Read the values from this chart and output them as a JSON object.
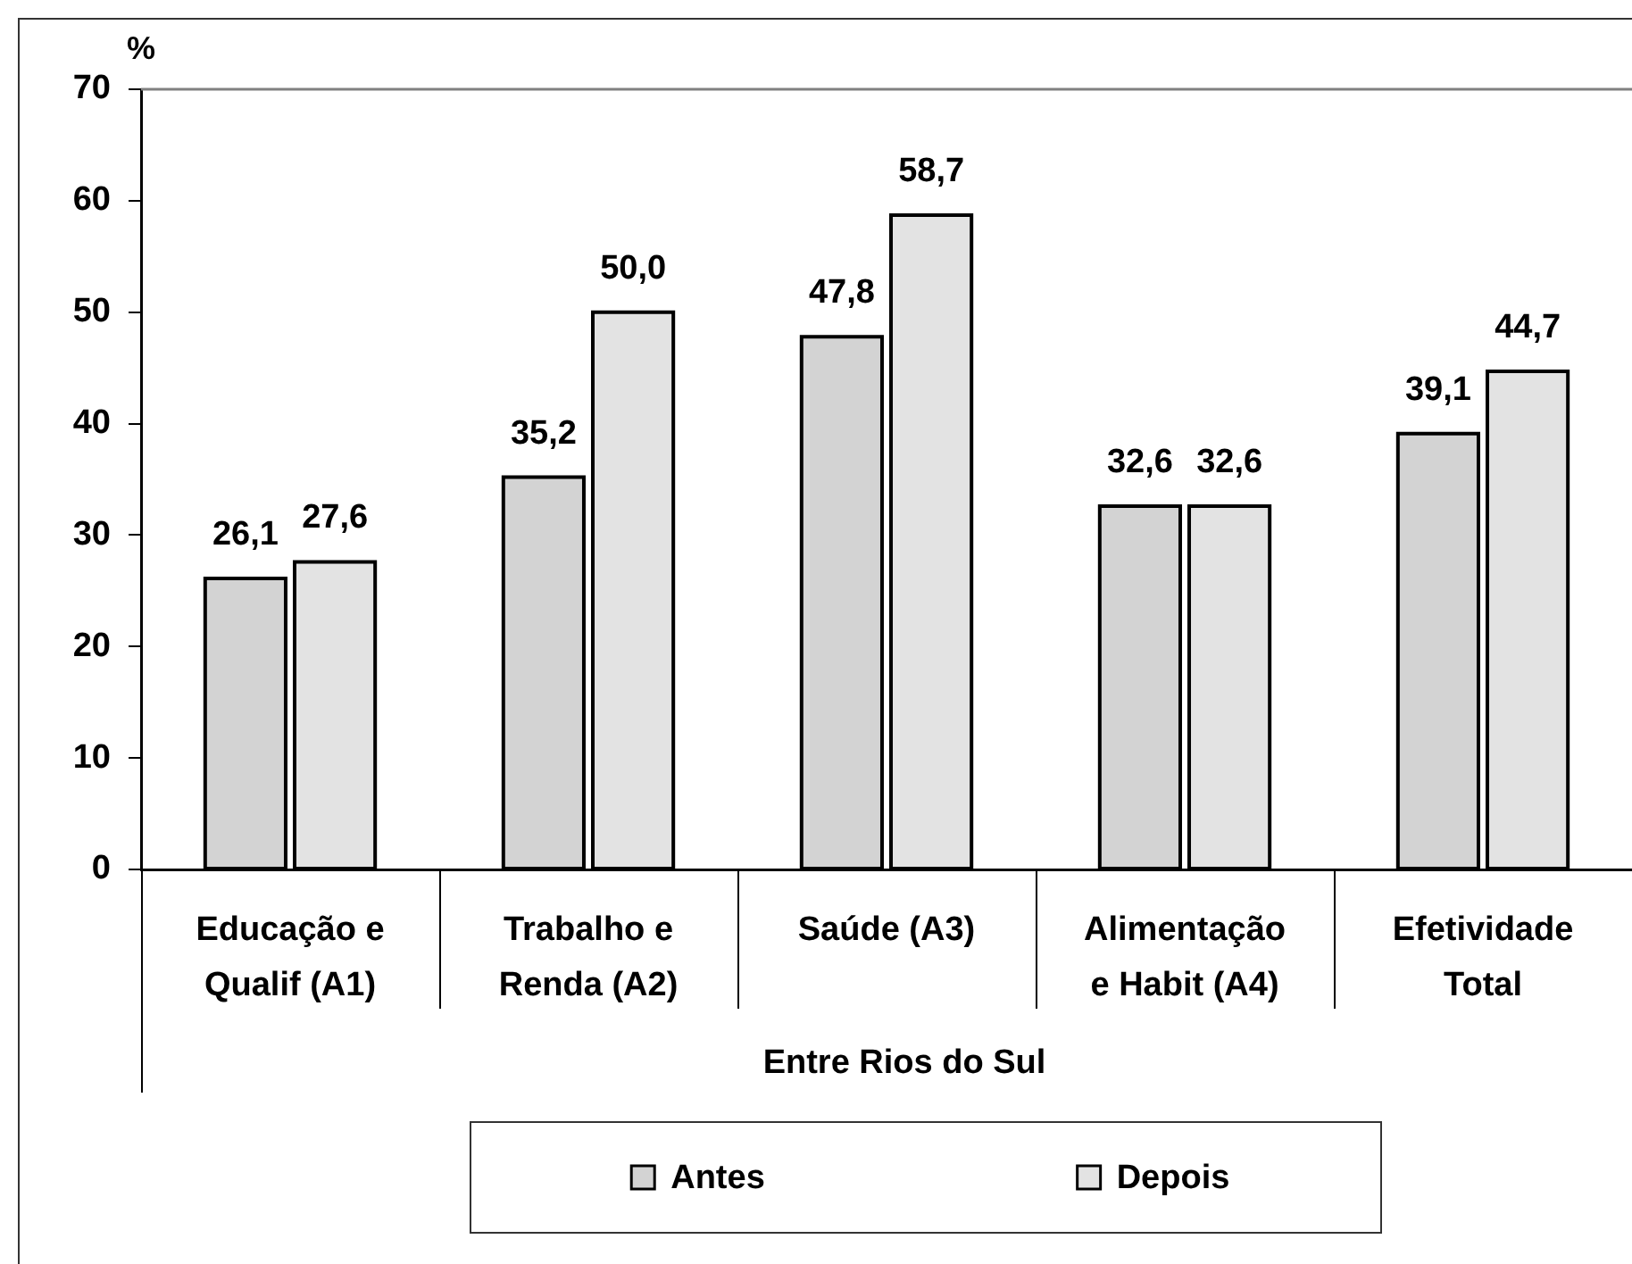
{
  "chart_data": {
    "type": "bar",
    "ylabel": "%",
    "xlabel": "Entre Rios do Sul",
    "categories": [
      "Educação e\nQualif (A1)",
      "Trabalho e\nRenda (A2)",
      "Saúde (A3)",
      "Alimentação\ne Habit (A4)",
      "Efetividade\nTotal"
    ],
    "series": [
      {
        "name": "Antes",
        "color": "#d3d3d3",
        "values": [
          26.1,
          35.2,
          47.8,
          32.6,
          39.1
        ],
        "value_labels": [
          "26,1",
          "35,2",
          "47,8",
          "32,6",
          "39,1"
        ]
      },
      {
        "name": "Depois",
        "color": "#e3e3e3",
        "values": [
          27.6,
          50.0,
          58.7,
          32.6,
          44.7
        ],
        "value_labels": [
          "27,6",
          "50,0",
          "58,7",
          "32,6",
          "44,7"
        ]
      }
    ],
    "ylim": [
      0,
      70
    ],
    "yticks": [
      0,
      10,
      20,
      30,
      40,
      50,
      60,
      70
    ],
    "grid": false,
    "legend": "bottom"
  }
}
